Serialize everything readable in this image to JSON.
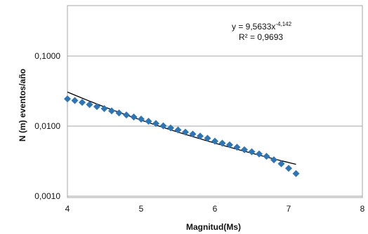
{
  "chart_data": {
    "type": "scatter",
    "title": "",
    "xlabel": "Magnitud(Ms)",
    "ylabel": "N (m) eventos/año",
    "xlim": [
      4,
      8
    ],
    "ylim": [
      0.001,
      0.5
    ],
    "y_scale": "log",
    "grid": "horizontal",
    "x_ticks": [
      4,
      5,
      6,
      7,
      8
    ],
    "x_tick_labels": [
      "4",
      "5",
      "6",
      "7",
      "8"
    ],
    "y_ticks": [
      0.001,
      0.01,
      0.1
    ],
    "y_tick_labels": [
      "0,0010",
      "0,0100",
      "0,1000"
    ],
    "marker": "diamond",
    "colors": {
      "points": "#2e75b6",
      "trendline": "#000000",
      "gridline": "#a6a6a6",
      "frame": "#a6a6a6"
    },
    "series": [
      {
        "x": [
          4.0,
          4.1,
          4.2,
          4.3,
          4.4,
          4.5,
          4.6,
          4.7,
          4.8,
          4.9,
          5.0,
          5.1,
          5.2,
          5.3,
          5.4,
          5.5,
          5.6,
          5.7,
          5.8,
          5.9,
          6.0,
          6.1,
          6.2,
          6.3,
          6.4,
          6.5,
          6.6,
          6.7,
          6.8,
          6.9,
          7.0,
          7.1
        ],
        "y": [
          0.0245,
          0.0232,
          0.0218,
          0.0203,
          0.019,
          0.0178,
          0.0165,
          0.0154,
          0.0144,
          0.0135,
          0.0126,
          0.0117,
          0.0109,
          0.0101,
          0.0094,
          0.0088,
          0.0082,
          0.0077,
          0.0072,
          0.0067,
          0.0061,
          0.0057,
          0.0054,
          0.005,
          0.0046,
          0.0043,
          0.004,
          0.0037,
          0.0033,
          0.0029,
          0.0025,
          0.0021
        ]
      }
    ],
    "trendline": {
      "type": "power",
      "coefficient": 9.5633,
      "exponent": -4.142,
      "x_range": [
        4,
        7.1
      ],
      "equation_label": "y = 9,5633x",
      "equation_exponent": "-4,142",
      "r2_label": "R² = 0,9693"
    }
  }
}
